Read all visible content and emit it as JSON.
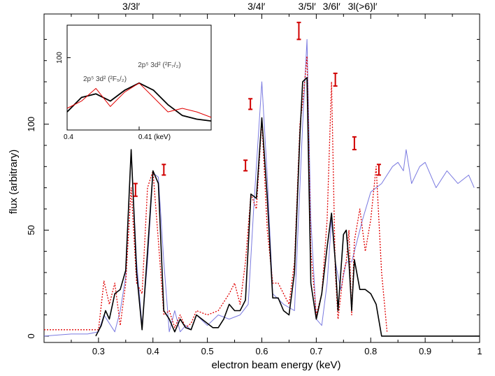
{
  "chart_data": {
    "type": "line",
    "title": "",
    "xlabel": "electron beam energy (keV)",
    "ylabel": "flux (arbitrary)",
    "xlim": [
      0.2,
      1.0
    ],
    "ylim": [
      -3,
      152
    ],
    "x_ticks": [
      0.3,
      0.4,
      0.5,
      0.6,
      0.7,
      0.8,
      0.9,
      1
    ],
    "x_tick_labels": [
      "0.3",
      "0.4",
      "0.5",
      "0.6",
      "0.7",
      "0.8",
      "0.9",
      "1"
    ],
    "y_ticks": [
      0,
      50,
      100
    ],
    "y_tick_labels": [
      "0",
      "50",
      "100"
    ],
    "grid": false,
    "legend": "none",
    "region_labels": [
      {
        "text": "3/3l′",
        "x": 0.36
      },
      {
        "text": "3/4l′",
        "x": 0.59
      },
      {
        "text": "3/5l′",
        "x": 0.683
      },
      {
        "text": "3/6l′",
        "x": 0.728
      },
      {
        "text": "3l(>6)l′",
        "x": 0.785
      }
    ],
    "series": [
      {
        "color": "#000000",
        "style": "solid",
        "x": [
          0.295,
          0.305,
          0.313,
          0.32,
          0.33,
          0.34,
          0.35,
          0.36,
          0.37,
          0.38,
          0.39,
          0.4,
          0.41,
          0.42,
          0.43,
          0.44,
          0.45,
          0.46,
          0.47,
          0.48,
          0.49,
          0.5,
          0.51,
          0.52,
          0.53,
          0.54,
          0.55,
          0.56,
          0.57,
          0.58,
          0.59,
          0.6,
          0.61,
          0.62,
          0.63,
          0.64,
          0.65,
          0.66,
          0.67,
          0.675,
          0.683,
          0.69,
          0.7,
          0.71,
          0.72,
          0.728,
          0.735,
          0.74,
          0.75,
          0.755,
          0.76,
          0.765,
          0.77,
          0.78,
          0.79,
          0.8,
          0.81,
          0.82,
          0.83,
          1.0
        ],
        "y": [
          0,
          5,
          12,
          8,
          20,
          22,
          31,
          88,
          30,
          3,
          40,
          78,
          72,
          12,
          8,
          2,
          8,
          4,
          3,
          10,
          8,
          6,
          4,
          4,
          8,
          15,
          12,
          12,
          17,
          67,
          65,
          103,
          65,
          18,
          18,
          12,
          10,
          30,
          95,
          120,
          122,
          25,
          8,
          20,
          42,
          58,
          35,
          12,
          48,
          50,
          35,
          12,
          36,
          22,
          22,
          20,
          15,
          0,
          0,
          0
        ]
      },
      {
        "color": "#7a7ae0",
        "style": "solid",
        "x": [
          0.2,
          0.25,
          0.28,
          0.3,
          0.31,
          0.33,
          0.34,
          0.35,
          0.36,
          0.37,
          0.38,
          0.39,
          0.4,
          0.41,
          0.42,
          0.43,
          0.44,
          0.45,
          0.46,
          0.47,
          0.48,
          0.5,
          0.52,
          0.54,
          0.56,
          0.575,
          0.585,
          0.6,
          0.61,
          0.62,
          0.64,
          0.66,
          0.675,
          0.683,
          0.69,
          0.7,
          0.71,
          0.72,
          0.728,
          0.735,
          0.745,
          0.755,
          0.765,
          0.775,
          0.785,
          0.8,
          0.82,
          0.84,
          0.85,
          0.86,
          0.865,
          0.875,
          0.89,
          0.9,
          0.92,
          0.94,
          0.96,
          0.98,
          0.99
        ],
        "y": [
          0,
          1,
          1,
          2,
          10,
          2,
          12,
          28,
          87,
          35,
          5,
          35,
          77,
          75,
          35,
          2,
          12,
          2,
          5,
          3,
          10,
          5,
          10,
          8,
          10,
          15,
          60,
          120,
          75,
          20,
          15,
          12,
          100,
          140,
          55,
          8,
          5,
          25,
          55,
          35,
          22,
          35,
          35,
          45,
          55,
          68,
          72,
          80,
          82,
          78,
          88,
          72,
          80,
          82,
          70,
          78,
          72,
          76,
          70
        ]
      },
      {
        "color": "#e00000",
        "style": "dotted",
        "x": [
          0.2,
          0.3,
          0.31,
          0.32,
          0.33,
          0.34,
          0.35,
          0.36,
          0.37,
          0.38,
          0.39,
          0.4,
          0.41,
          0.42,
          0.43,
          0.44,
          0.45,
          0.46,
          0.47,
          0.48,
          0.5,
          0.52,
          0.54,
          0.55,
          0.56,
          0.57,
          0.58,
          0.59,
          0.6,
          0.61,
          0.62,
          0.63,
          0.64,
          0.65,
          0.66,
          0.67,
          0.675,
          0.683,
          0.69,
          0.7,
          0.71,
          0.72,
          0.728,
          0.735,
          0.74,
          0.75,
          0.755,
          0.76,
          0.765,
          0.77,
          0.78,
          0.79,
          0.8,
          0.81,
          0.82,
          0.83
        ],
        "y": [
          3,
          3,
          26,
          15,
          25,
          5,
          25,
          70,
          25,
          20,
          70,
          78,
          45,
          10,
          12,
          4,
          10,
          4,
          6,
          12,
          10,
          12,
          20,
          25,
          15,
          35,
          67,
          60,
          102,
          50,
          25,
          25,
          20,
          15,
          35,
          100,
          110,
          132,
          40,
          10,
          20,
          55,
          120,
          30,
          8,
          30,
          35,
          50,
          10,
          45,
          60,
          40,
          55,
          80,
          30,
          2
        ]
      }
    ],
    "error_bars": [
      {
        "x": 0.368,
        "low": 66,
        "high": 72
      },
      {
        "x": 0.42,
        "low": 76,
        "high": 81
      },
      {
        "x": 0.57,
        "low": 78,
        "high": 83
      },
      {
        "x": 0.579,
        "low": 107,
        "high": 112
      },
      {
        "x": 0.668,
        "low": 140,
        "high": 148
      },
      {
        "x": 0.735,
        "low": 118,
        "high": 124
      },
      {
        "x": 0.77,
        "low": 88,
        "high": 94
      },
      {
        "x": 0.815,
        "low": 76,
        "high": 81
      }
    ],
    "inset": {
      "xlim": [
        0.4,
        0.42
      ],
      "ylim": [
        60,
        118
      ],
      "x_tick_labels": [
        "0.4",
        "0.41 (keV)"
      ],
      "y_tick_labels": [
        "100"
      ],
      "labels": [
        "2p⁵ 3d² (²F₇/₂)",
        "2p⁵ 3d² (²F₅/₂)"
      ],
      "series": [
        {
          "color": "#000000",
          "x": [
            0.4,
            0.402,
            0.404,
            0.406,
            0.408,
            0.41,
            0.412,
            0.414,
            0.416,
            0.418,
            0.42
          ],
          "y": [
            70,
            78,
            80,
            76,
            82,
            86,
            82,
            74,
            68,
            66,
            65
          ]
        },
        {
          "color": "#e00000",
          "x": [
            0.4,
            0.402,
            0.404,
            0.406,
            0.408,
            0.41,
            0.412,
            0.414,
            0.416,
            0.418,
            0.42
          ],
          "y": [
            72,
            76,
            83,
            73,
            81,
            86,
            78,
            70,
            72,
            70,
            67
          ]
        }
      ]
    }
  }
}
